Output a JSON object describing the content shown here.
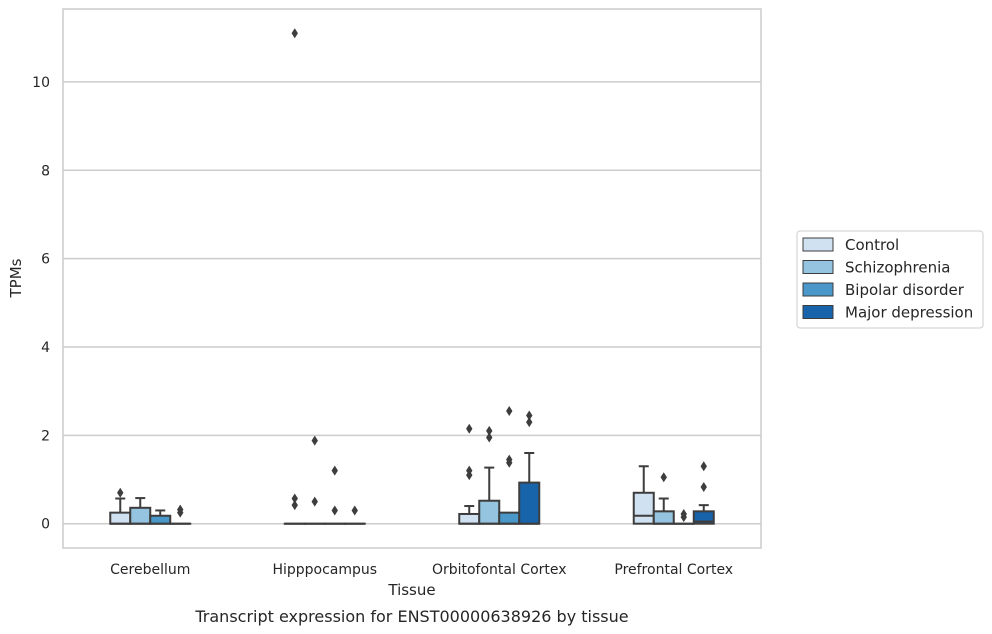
{
  "chart_data": {
    "type": "box",
    "title": "",
    "caption": "Transcript expression for ENST00000638926 by tissue",
    "xlabel": "Tissue",
    "ylabel": "TPMs",
    "ylim": [
      -0.55,
      11.65
    ],
    "yticks": [
      0,
      2,
      4,
      6,
      8,
      10
    ],
    "ytick_labels": [
      "0",
      "2",
      "4",
      "6",
      "8",
      "10"
    ],
    "grid": "horizontal",
    "legend_position": "right",
    "categories": [
      "Cerebellum",
      "Hipppocampus",
      "Orbitofontal Cortex",
      "Prefrontal Cortex"
    ],
    "series": [
      {
        "name": "Control",
        "color": "#d0e1f2",
        "boxes": [
          {
            "q1": 0,
            "median": 0,
            "q3": 0.25,
            "whisker_low": 0,
            "whisker_high": 0.57,
            "outliers": [
              0.7
            ]
          },
          {
            "q1": 0,
            "median": 0,
            "q3": 0,
            "whisker_low": 0,
            "whisker_high": 0,
            "outliers": [
              0.42,
              0.57,
              11.1
            ]
          },
          {
            "q1": 0,
            "median": 0,
            "q3": 0.22,
            "whisker_low": 0,
            "whisker_high": 0.4,
            "outliers": [
              1.1,
              1.2,
              2.15
            ]
          },
          {
            "q1": 0,
            "median": 0.18,
            "q3": 0.7,
            "whisker_low": 0,
            "whisker_high": 1.3,
            "outliers": []
          }
        ]
      },
      {
        "name": "Schizophrenia",
        "color": "#94c4df",
        "boxes": [
          {
            "q1": 0,
            "median": 0,
            "q3": 0.36,
            "whisker_low": 0,
            "whisker_high": 0.58,
            "outliers": []
          },
          {
            "q1": 0,
            "median": 0,
            "q3": 0,
            "whisker_low": 0,
            "whisker_high": 0,
            "outliers": [
              0.5,
              1.88
            ]
          },
          {
            "q1": 0,
            "median": 0,
            "q3": 0.52,
            "whisker_low": 0,
            "whisker_high": 1.27,
            "outliers": [
              1.95,
              2.1
            ]
          },
          {
            "q1": 0,
            "median": 0,
            "q3": 0.28,
            "whisker_low": 0,
            "whisker_high": 0.57,
            "outliers": [
              1.05
            ]
          }
        ]
      },
      {
        "name": "Bipolar disorder",
        "color": "#4a98c9",
        "boxes": [
          {
            "q1": 0,
            "median": 0,
            "q3": 0.18,
            "whisker_low": 0,
            "whisker_high": 0.3,
            "outliers": []
          },
          {
            "q1": 0,
            "median": 0,
            "q3": 0,
            "whisker_low": 0,
            "whisker_high": 0,
            "outliers": [
              0.3,
              1.2
            ]
          },
          {
            "q1": 0,
            "median": 0,
            "q3": 0.25,
            "whisker_low": 0,
            "whisker_high": 0.25,
            "outliers": [
              1.38,
              1.45,
              2.55
            ]
          },
          {
            "q1": 0,
            "median": 0,
            "q3": 0,
            "whisker_low": 0,
            "whisker_high": 0,
            "outliers": [
              0.15,
              0.22
            ]
          }
        ]
      },
      {
        "name": "Major depression",
        "color": "#1764ab",
        "boxes": [
          {
            "q1": 0,
            "median": 0,
            "q3": 0,
            "whisker_low": 0,
            "whisker_high": 0,
            "outliers": [
              0.25,
              0.32
            ]
          },
          {
            "q1": 0,
            "median": 0,
            "q3": 0,
            "whisker_low": 0,
            "whisker_high": 0,
            "outliers": [
              0.3
            ]
          },
          {
            "q1": 0,
            "median": 0,
            "q3": 0.93,
            "whisker_low": 0,
            "whisker_high": 1.6,
            "outliers": [
              2.3,
              2.45
            ]
          },
          {
            "q1": 0,
            "median": 0.05,
            "q3": 0.28,
            "whisker_low": 0,
            "whisker_high": 0.42,
            "outliers": [
              0.83,
              1.3
            ]
          }
        ]
      }
    ]
  }
}
